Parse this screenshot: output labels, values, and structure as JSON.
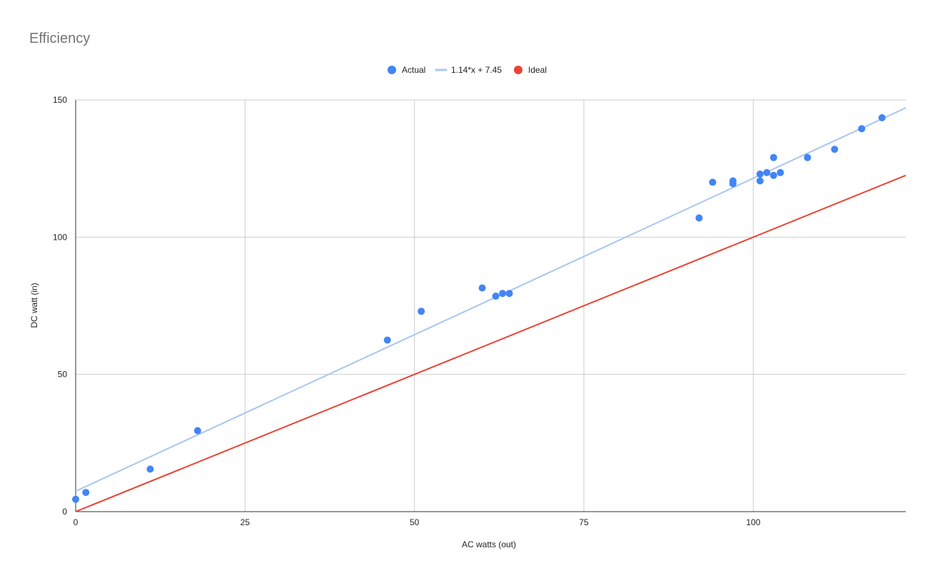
{
  "chart_data": {
    "type": "scatter",
    "title": "Efficiency",
    "xlabel": "AC watts (out)",
    "ylabel": "DC watt (in)",
    "xlim": [
      0,
      122.5
    ],
    "ylim": [
      0,
      150
    ],
    "x_ticks": [
      "0",
      "25",
      "50",
      "75",
      "100"
    ],
    "y_ticks": [
      "0",
      "50",
      "100",
      "150"
    ],
    "x_tick_values": [
      0,
      25,
      50,
      75,
      100
    ],
    "y_tick_values": [
      0,
      50,
      100,
      150
    ],
    "grid": true,
    "legend_position": "top",
    "legend": [
      {
        "label": "Actual",
        "kind": "point",
        "color": "#4285f4"
      },
      {
        "label": "1.14*x + 7.45",
        "kind": "line",
        "color": "#a8c7f0"
      },
      {
        "label": "Ideal",
        "kind": "point",
        "color": "#ea4335"
      }
    ],
    "series": [
      {
        "name": "Actual",
        "color": "#4285f4",
        "points": [
          [
            0,
            4.5
          ],
          [
            1.5,
            7
          ],
          [
            11,
            15.5
          ],
          [
            18,
            29.5
          ],
          [
            46,
            62.5
          ],
          [
            51,
            73
          ],
          [
            60,
            81.5
          ],
          [
            62,
            78.5
          ],
          [
            63,
            79.5
          ],
          [
            64,
            79.5
          ],
          [
            92,
            107
          ],
          [
            94,
            120
          ],
          [
            97,
            120.5
          ],
          [
            97,
            119.5
          ],
          [
            101,
            123
          ],
          [
            101,
            120.5
          ],
          [
            102,
            123.5
          ],
          [
            103,
            129
          ],
          [
            103,
            122.5
          ],
          [
            104,
            123.5
          ],
          [
            108,
            129
          ],
          [
            112,
            132
          ],
          [
            116,
            139.5
          ],
          [
            119,
            143.5
          ]
        ]
      },
      {
        "name": "1.14*x + 7.45",
        "color": "#a8c7f0",
        "trendline": {
          "slope": 1.14,
          "intercept": 7.45
        }
      },
      {
        "name": "Ideal",
        "color": "#ea4335",
        "line": [
          [
            0,
            0
          ],
          [
            122.5,
            122.5
          ]
        ]
      }
    ]
  }
}
